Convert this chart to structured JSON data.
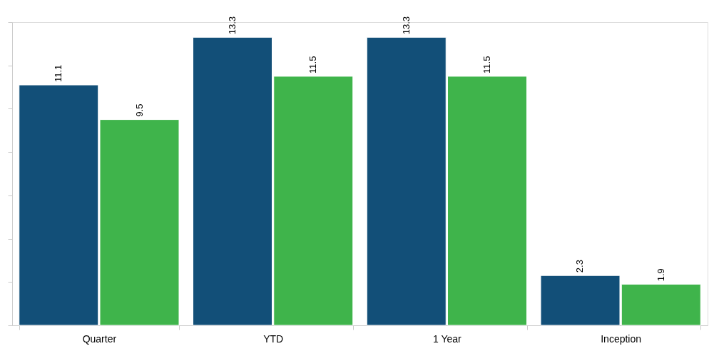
{
  "chart_data": {
    "type": "bar",
    "categories": [
      "Quarter",
      "YTD",
      "1 Year",
      "Inception"
    ],
    "series": [
      {
        "color": "#124f78",
        "values": [
          11.1,
          13.3,
          13.3,
          2.3
        ]
      },
      {
        "color": "#3fb44b",
        "values": [
          9.5,
          11.5,
          11.5,
          1.9
        ]
      }
    ],
    "ylim": [
      0,
      14
    ],
    "yticks": [
      {
        "value": 0,
        "label": null
      },
      {
        "value": 2,
        "label": null
      },
      {
        "value": 4,
        "label": null
      },
      {
        "value": 6,
        "label": null
      },
      {
        "value": 8,
        "label": null
      },
      {
        "value": 10,
        "label": null
      },
      {
        "value": 12,
        "label": null
      },
      {
        "value": 14,
        "label": null
      }
    ],
    "tick_labels": "x",
    "data_labels": true,
    "grid": false,
    "legend": false
  }
}
